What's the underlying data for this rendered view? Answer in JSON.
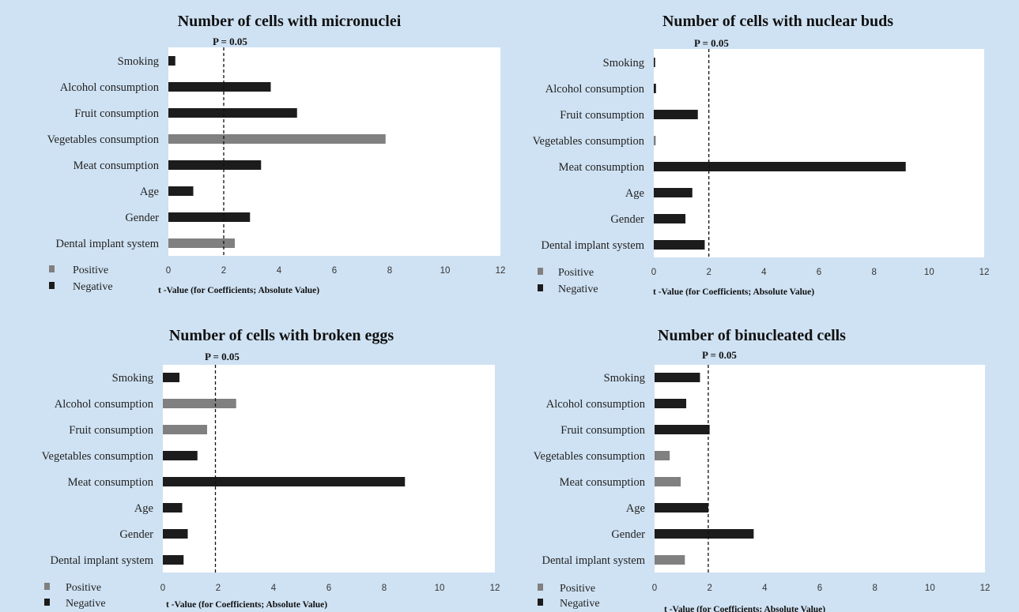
{
  "chart_data": [
    {
      "type": "bar",
      "orientation": "horizontal",
      "title": "Number of cells with micronuclei",
      "threshold_label": "P = 0.05",
      "threshold_value": 2,
      "categories": [
        "Smoking",
        "Alcohol consumption",
        "Fruit consumption",
        "Vegetables consumption",
        "Meat consumption",
        "Age",
        "Gender",
        "Dental implant system"
      ],
      "values": [
        0.25,
        3.7,
        4.65,
        7.85,
        3.35,
        0.9,
        2.95,
        2.4
      ],
      "signs": [
        "Negative",
        "Negative",
        "Negative",
        "Positive",
        "Negative",
        "Negative",
        "Negative",
        "Positive"
      ],
      "xlabel": "t -Value (for Coefficients; Absolute Value)",
      "xlim": [
        0,
        12
      ],
      "xticks": [
        "0",
        "2",
        "4",
        "6",
        "8",
        "10",
        "12"
      ],
      "legend": [
        "Positive",
        "Negative"
      ]
    },
    {
      "type": "bar",
      "orientation": "horizontal",
      "title": "Number of cells with nuclear buds",
      "threshold_label": "P = 0.05",
      "threshold_value": 2,
      "categories": [
        "Smoking",
        "Alcohol consumption",
        "Fruit consumption",
        "Vegetables consumption",
        "Meat consumption",
        "Age",
        "Gender",
        "Dental implant system"
      ],
      "values": [
        0.05,
        0.08,
        1.6,
        0.07,
        9.15,
        1.4,
        1.15,
        1.85
      ],
      "signs": [
        "Negative",
        "Negative",
        "Negative",
        "Positive",
        "Negative",
        "Negative",
        "Negative",
        "Negative"
      ],
      "xlabel": "t -Value (for Coefficients; Absolute Value)",
      "xlim": [
        0,
        12
      ],
      "xticks": [
        "0",
        "2",
        "4",
        "6",
        "8",
        "10",
        "12"
      ],
      "legend": [
        "Positive",
        "Negative"
      ]
    },
    {
      "type": "bar",
      "orientation": "horizontal",
      "title": "Number of cells with broken eggs",
      "threshold_label": "P = 0.05",
      "threshold_value": 1.9,
      "categories": [
        "Smoking",
        "Alcohol consumption",
        "Fruit consumption",
        "Vegetables consumption",
        "Meat consumption",
        "Age",
        "Gender",
        "Dental implant system"
      ],
      "values": [
        0.6,
        2.65,
        1.6,
        1.25,
        8.75,
        0.7,
        0.9,
        0.75
      ],
      "signs": [
        "Negative",
        "Positive",
        "Positive",
        "Negative",
        "Negative",
        "Negative",
        "Negative",
        "Negative"
      ],
      "xlabel": "t -Value (for Coefficients; Absolute Value)",
      "xlim": [
        0,
        12
      ],
      "xticks": [
        "0",
        "2",
        "4",
        "6",
        "8",
        "10",
        "12"
      ],
      "legend": [
        "Positive",
        "Negative"
      ]
    },
    {
      "type": "bar",
      "orientation": "horizontal",
      "title": "Number of binucleated cells",
      "threshold_label": "P = 0.05",
      "threshold_value": 1.95,
      "categories": [
        "Smoking",
        "Alcohol consumption",
        "Fruit consumption",
        "Vegetables consumption",
        "Meat consumption",
        "Age",
        "Gender",
        "Dental implant system"
      ],
      "values": [
        1.65,
        1.15,
        2.0,
        0.55,
        0.95,
        1.95,
        3.6,
        1.1
      ],
      "signs": [
        "Negative",
        "Negative",
        "Negative",
        "Positive",
        "Positive",
        "Negative",
        "Negative",
        "Positive"
      ],
      "xlabel": "t -Value (for Coefficients; Absolute Value)",
      "xlim": [
        0,
        12
      ],
      "xticks": [
        "0",
        "2",
        "4",
        "6",
        "8",
        "10",
        "12"
      ],
      "legend": [
        "Positive",
        "Negative"
      ]
    }
  ],
  "colors": {
    "Positive": "#808080",
    "Negative": "#1c1c1c",
    "plot_bg": "#ffffff",
    "figure_bg": "#cfe2f3"
  }
}
